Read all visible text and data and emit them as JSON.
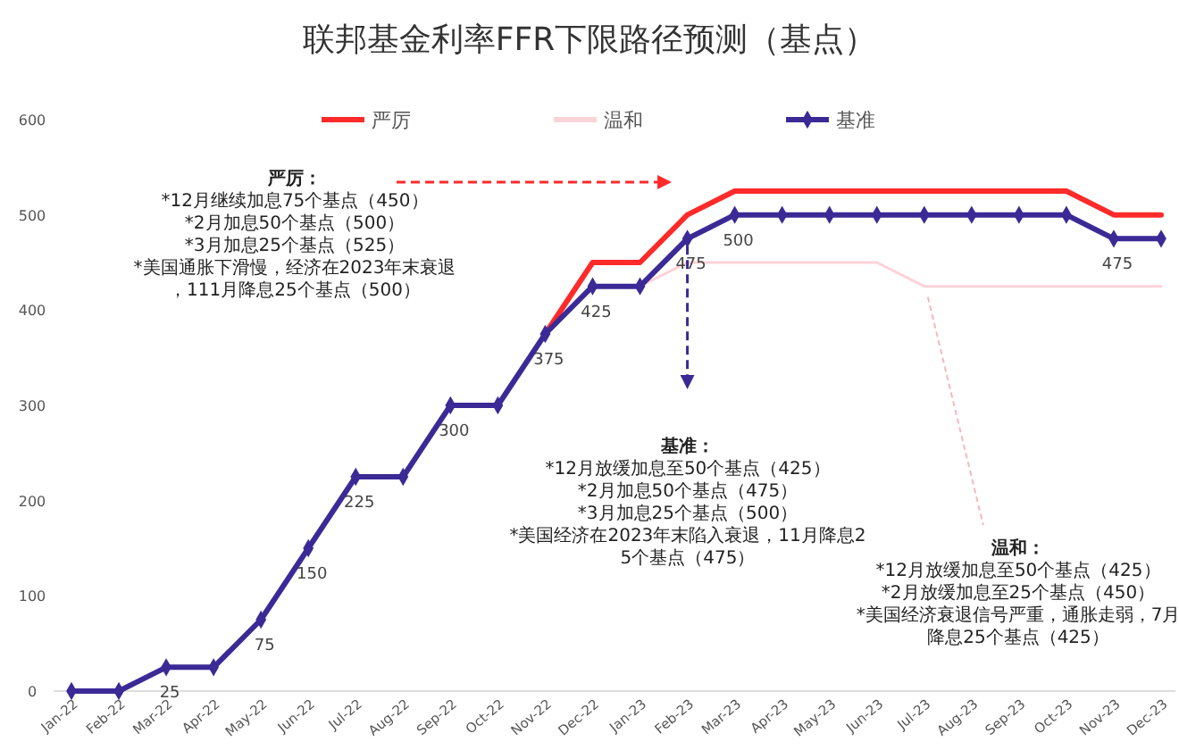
{
  "chart_data": {
    "type": "line",
    "title": "联邦基金利率FFR下限路径预测（基点）",
    "categories": [
      "Jan-22",
      "Feb-22",
      "Mar-22",
      "Apr-22",
      "May-22",
      "Jun-22",
      "Jul-22",
      "Aug-22",
      "Sep-22",
      "Oct-22",
      "Nov-22",
      "Dec-22",
      "Jan-23",
      "Feb-23",
      "Mar-23",
      "Apr-23",
      "May-23",
      "Jun-23",
      "Jul-23",
      "Aug-23",
      "Sep-23",
      "Oct-23",
      "Nov-23",
      "Dec-23"
    ],
    "series": [
      {
        "name": "严厉",
        "color": "#ff2a2a",
        "marker": "none",
        "values": [
          null,
          null,
          null,
          null,
          null,
          null,
          null,
          null,
          null,
          null,
          375,
          450,
          450,
          500,
          525,
          525,
          525,
          525,
          525,
          525,
          525,
          525,
          500,
          500
        ]
      },
      {
        "name": "温和",
        "color": "#fbd3d8",
        "marker": "none",
        "values": [
          null,
          null,
          null,
          null,
          null,
          null,
          null,
          null,
          null,
          null,
          null,
          null,
          425,
          450,
          450,
          450,
          450,
          450,
          425,
          425,
          425,
          425,
          425,
          425
        ]
      },
      {
        "name": "基准",
        "color": "#3b2a96",
        "marker": "diamond",
        "values": [
          0,
          0,
          25,
          25,
          75,
          150,
          225,
          225,
          300,
          300,
          375,
          425,
          425,
          475,
          500,
          500,
          500,
          500,
          500,
          500,
          500,
          500,
          475,
          475
        ],
        "value_labels": [
          null,
          null,
          "25",
          null,
          "75",
          "150",
          "225",
          null,
          "300",
          null,
          "375",
          "425",
          null,
          "475",
          "500",
          null,
          null,
          null,
          null,
          null,
          null,
          null,
          "475",
          null
        ]
      }
    ],
    "ylim": [
      0,
      600
    ],
    "yticks": [
      0,
      100,
      200,
      300,
      400,
      500,
      600
    ],
    "grid": false,
    "legend": "top",
    "annotations": [
      "严厉：",
      "*12月继续加息75个基点（450）",
      "*2月加息50个基点（500）",
      "*3月加息25个基点（525）",
      "*美国通胀下滑慢，经济在2023年末衰退，111月降息25个基点（500）",
      "基准：",
      "*12月放缓加息至50个基点（425）",
      "*2月加息50个基点（475）",
      "*3月加息25个基点（500）",
      "*美国经济在2023年末陷入衰退，11月降息25个基点（475）",
      "温和：",
      "*12月放缓加息至50个基点（425）",
      "*2月放缓加息至25个基点（450）",
      "*美国经济衰退信号严重，通胀走弱，7月降息25个基点（425）"
    ]
  }
}
